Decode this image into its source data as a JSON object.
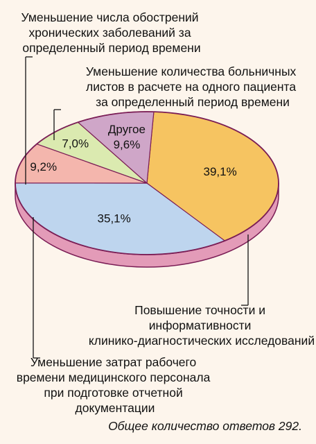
{
  "chart_data": {
    "type": "pie",
    "slices": [
      {
        "label": "Повышение точности и информативности клинико-диагностических исследований",
        "value": 39.1,
        "value_label": "39,1%",
        "color": "#f6c461"
      },
      {
        "label": "Уменьшение затрат рабочего времени медицинского персонала при подготовке отчетной документации",
        "value": 35.1,
        "value_label": "35,1%",
        "color": "#bed5ee"
      },
      {
        "label": "Уменьшение числа обострений хронических заболеваний за определенный период времени",
        "value": 9.2,
        "value_label": "9,2%",
        "color": "#f4b6ad"
      },
      {
        "label": "Уменьшение количества больничных листов в расчете на одного пациента за определенный период времени",
        "value": 7.0,
        "value_label": "7,0%",
        "color": "#dbeab0"
      },
      {
        "label": "Другое",
        "value": 9.6,
        "value_label": "9,6%",
        "color": "#cfa6c8"
      }
    ],
    "inline_label": "Другое",
    "outline_color": "#7a1d55",
    "side_color": "#e39bb8",
    "callouts": {
      "top": [
        "Уменьшение числа обострений",
        "хронических заболеваний за",
        "определенный период времени"
      ],
      "middle": [
        "Уменьшение количества больничных",
        "листов в расчете на одного пациента",
        "за определенный период времени"
      ],
      "right": [
        "Повышение точности и",
        "информативности",
        "клинико-диагностических исследований"
      ],
      "bottom": [
        "Уменьшение затрат рабочего",
        "времени медицинского персонала",
        "при подготовке отчетной",
        "документации"
      ]
    },
    "footnote": "Общее количество ответов 292."
  }
}
